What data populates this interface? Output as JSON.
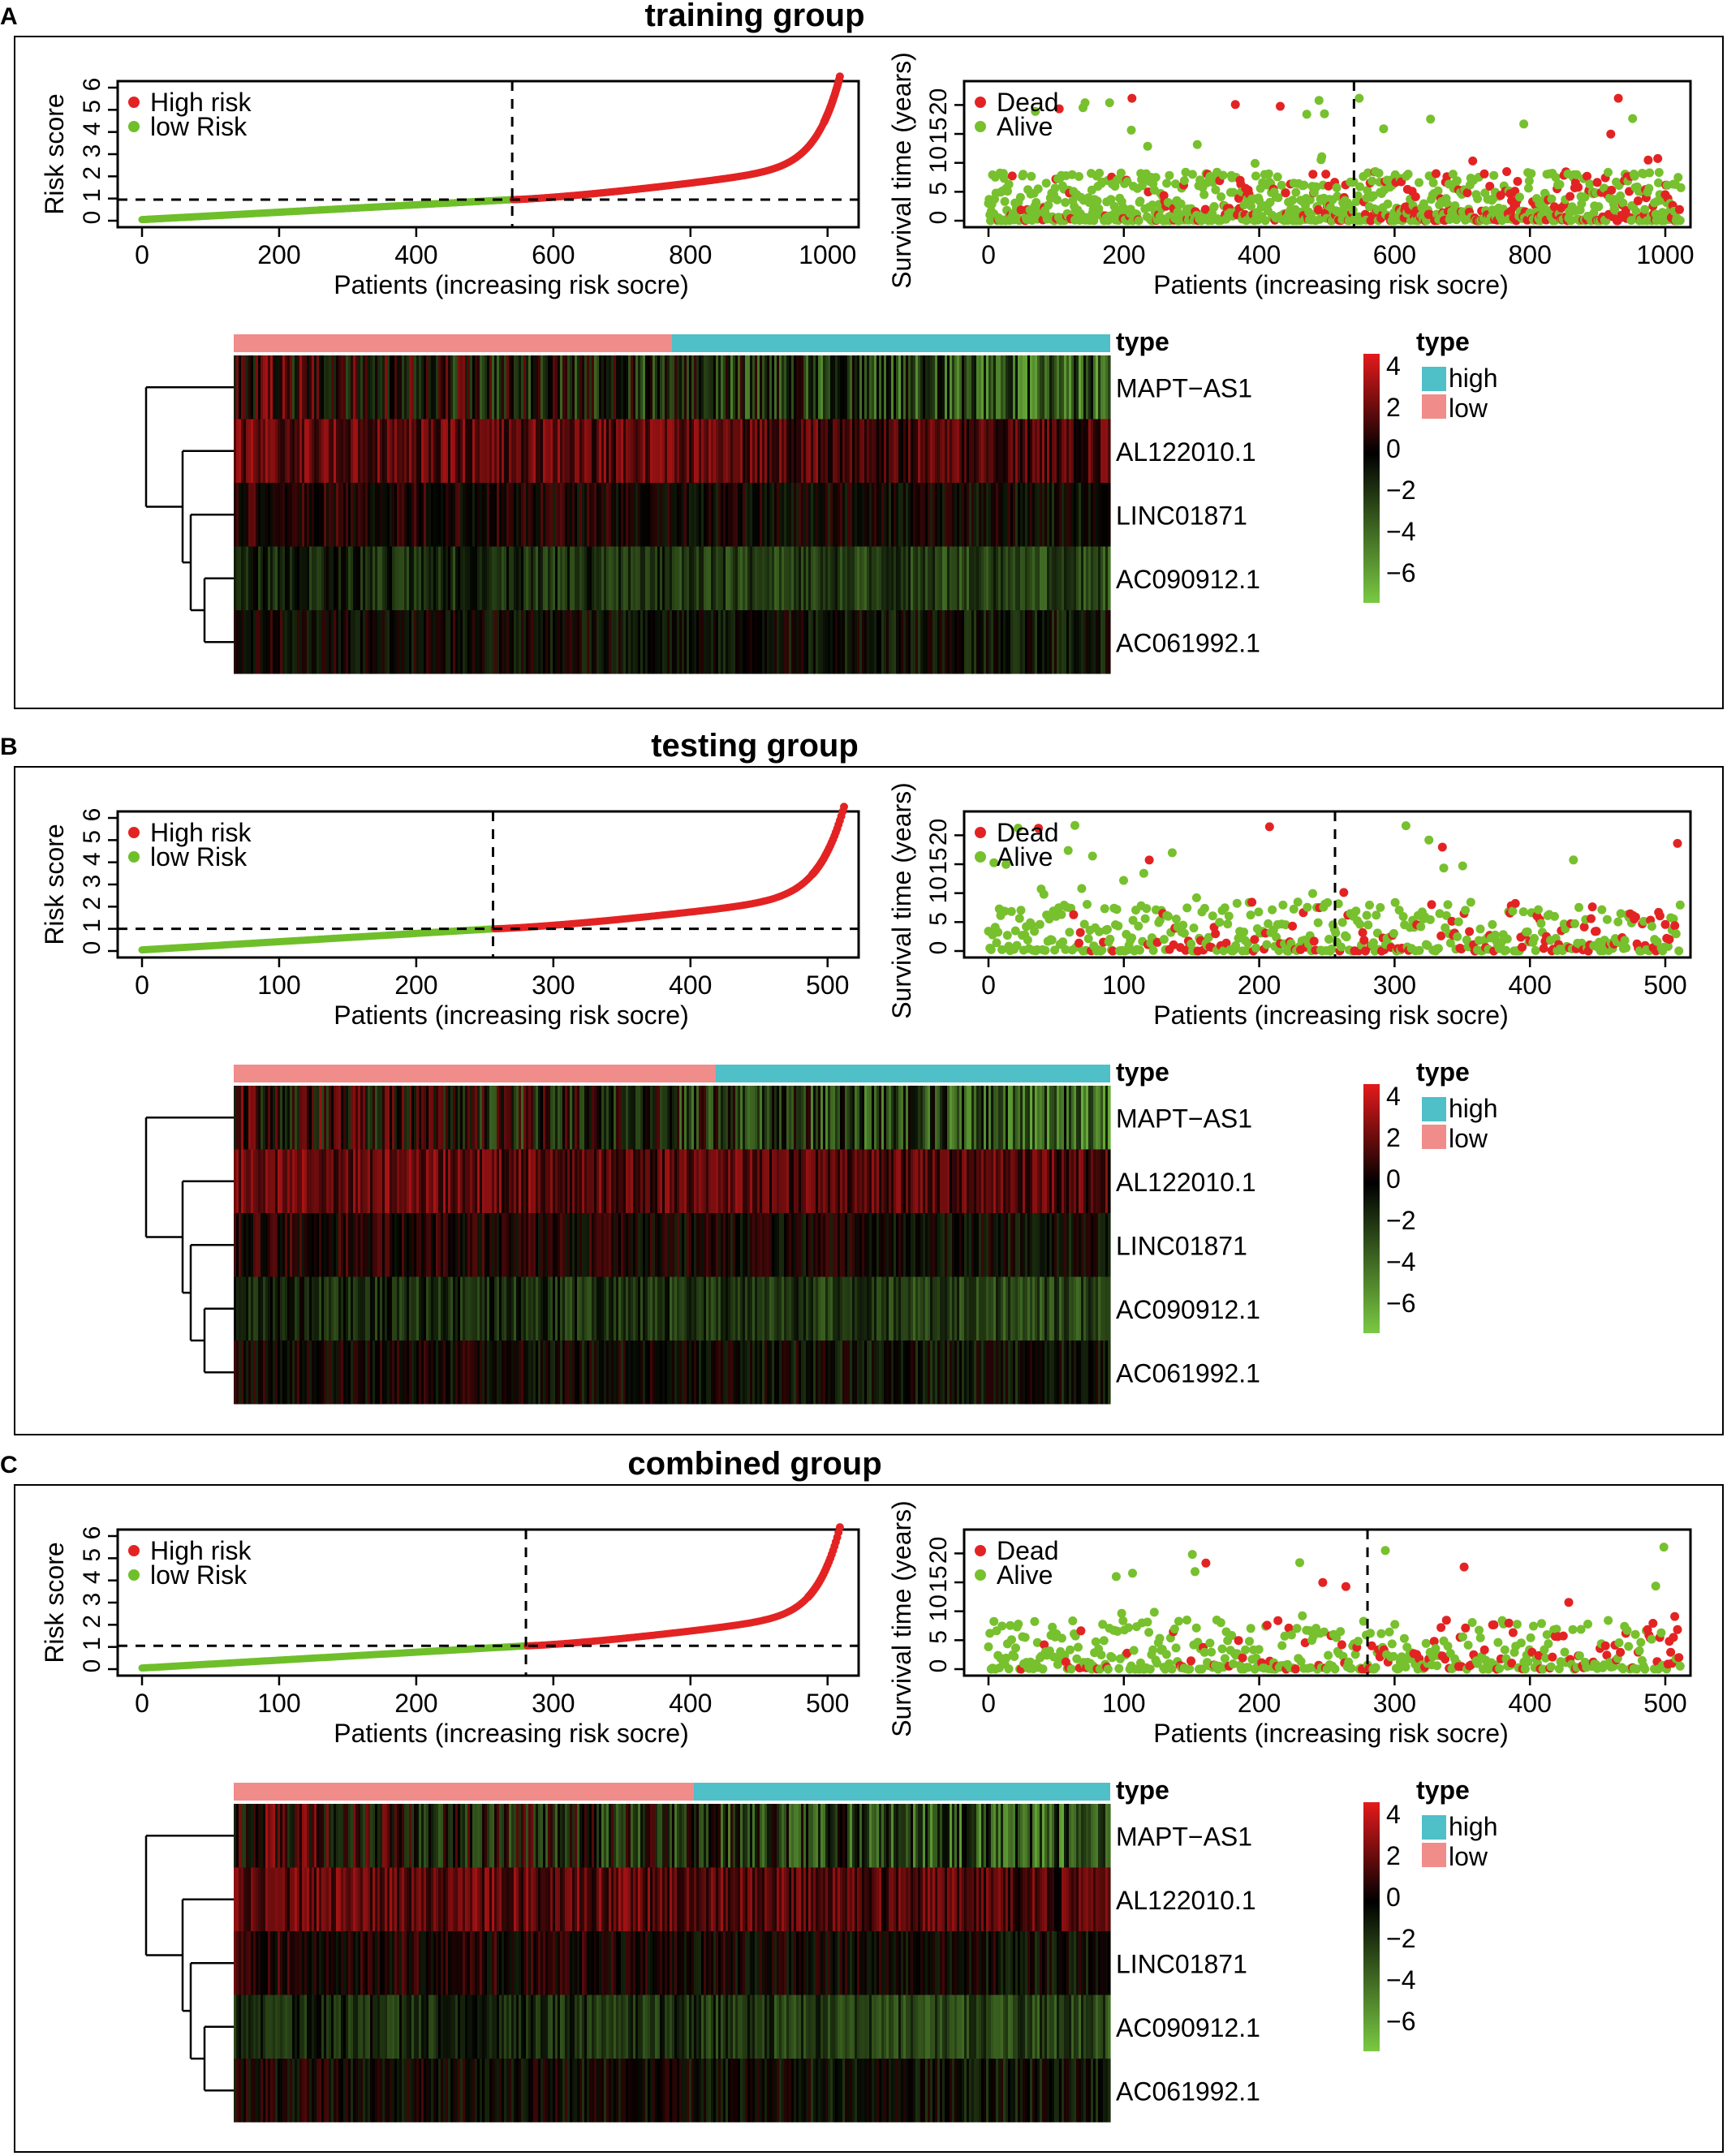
{
  "colors": {
    "high_risk": "#e32323",
    "low_risk": "#6fbf2a",
    "dead": "#e32323",
    "alive": "#77c02e",
    "type_high": "#4fbfc8",
    "type_low": "#f08c8a",
    "heat_max": "#e41a1c",
    "heat_mid": "#000000",
    "heat_min": "#7ac943"
  },
  "legend_labels": {
    "high_risk": "High risk",
    "low_risk": "low Risk",
    "dead": "Dead",
    "alive": "Alive",
    "type_title": "type",
    "type_high": "high",
    "type_low": "low",
    "heat_ticks": [
      "4",
      "2",
      "0",
      "−2",
      "−4",
      "−6"
    ],
    "annotation_label": "type"
  },
  "genes": [
    "MAPT−AS1",
    "AL122010.1",
    "LINC01871",
    "AC090912.1",
    "AC061992.1"
  ],
  "chart_data": [
    {
      "panel": "A",
      "title": "training group",
      "risk_plot": {
        "type": "scatter",
        "xlabel": "Patients (increasing risk socre)",
        "ylabel": "Risk score",
        "xlim": [
          0,
          1024
        ],
        "xticks": [
          "0",
          "200",
          "400",
          "600",
          "800",
          "1000"
        ],
        "yticks": [
          "0",
          "1",
          "2",
          "3",
          "4",
          "5",
          "6"
        ],
        "ylim": [
          0,
          6
        ],
        "n": 1019,
        "cutoff_index": 540,
        "cutoff_score": 0.95,
        "score_start": 0.05,
        "score_end": 6.5
      },
      "survival_plot": {
        "type": "scatter",
        "xlabel": "Patients (increasing risk socre)",
        "ylabel": "Survival time (years)",
        "xlim": [
          0,
          1024
        ],
        "xticks": [
          "0",
          "200",
          "400",
          "600",
          "800",
          "1000"
        ],
        "yticks": [
          "0",
          "5",
          "10",
          "15",
          "20"
        ],
        "ylim": [
          0,
          23
        ],
        "cutoff_index": 540
      },
      "heatmap": {
        "type": "heatmap",
        "low_fraction": 0.5
      }
    },
    {
      "panel": "B",
      "title": "testing group",
      "risk_plot": {
        "type": "scatter",
        "xlabel": "Patients (increasing risk socre)",
        "ylabel": "Risk score",
        "xlim": [
          0,
          512
        ],
        "xticks": [
          "0",
          "100",
          "200",
          "300",
          "400",
          "500"
        ],
        "yticks": [
          "0",
          "1",
          "2",
          "3",
          "4",
          "5",
          "6"
        ],
        "ylim": [
          0,
          6
        ],
        "n": 513,
        "cutoff_index": 256,
        "cutoff_score": 1.0,
        "score_start": 0.05,
        "score_end": 6.5
      },
      "survival_plot": {
        "type": "scatter",
        "xlabel": "Patients (increasing risk socre)",
        "ylabel": "Survival time (years)",
        "xlim": [
          0,
          512
        ],
        "xticks": [
          "0",
          "100",
          "200",
          "300",
          "400",
          "500"
        ],
        "yticks": [
          "0",
          "5",
          "10",
          "15",
          "20"
        ],
        "ylim": [
          0,
          23
        ],
        "cutoff_index": 256
      },
      "heatmap": {
        "type": "heatmap",
        "low_fraction": 0.55
      }
    },
    {
      "panel": "C",
      "title": "combined group",
      "risk_plot": {
        "type": "scatter",
        "xlabel": "Patients (increasing risk socre)",
        "ylabel": "Risk score",
        "xlim": [
          0,
          512
        ],
        "xticks": [
          "0",
          "100",
          "200",
          "300",
          "400",
          "500"
        ],
        "yticks": [
          "0",
          "1",
          "2",
          "3",
          "4",
          "5",
          "6"
        ],
        "ylim": [
          0,
          6
        ],
        "n": 510,
        "cutoff_index": 280,
        "cutoff_score": 1.05,
        "score_start": 0.05,
        "score_end": 6.4
      },
      "survival_plot": {
        "type": "scatter",
        "xlabel": "Patients (increasing risk socre)",
        "ylabel": "Survival time (years)",
        "xlim": [
          0,
          512
        ],
        "xticks": [
          "0",
          "100",
          "200",
          "300",
          "400",
          "500"
        ],
        "yticks": [
          "0",
          "5",
          "10",
          "15",
          "20"
        ],
        "ylim": [
          0,
          23
        ],
        "cutoff_index": 280
      },
      "heatmap": {
        "type": "heatmap",
        "low_fraction": 0.525
      }
    }
  ]
}
